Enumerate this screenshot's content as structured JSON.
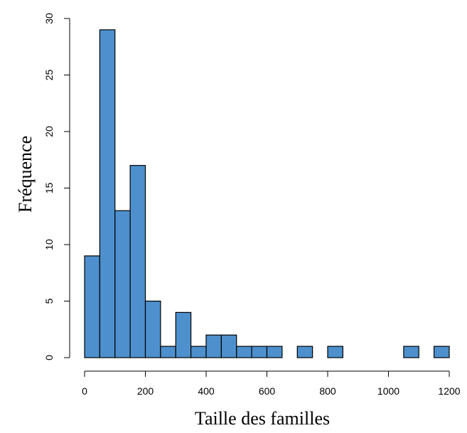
{
  "chart_data": {
    "type": "bar",
    "subtype": "histogram",
    "title": "",
    "xlabel": "Taille des familles",
    "ylabel": "Fréquence",
    "bin_width": 50,
    "bins": [
      {
        "from": 0,
        "to": 50,
        "count": 9
      },
      {
        "from": 50,
        "to": 100,
        "count": 29
      },
      {
        "from": 100,
        "to": 150,
        "count": 13
      },
      {
        "from": 150,
        "to": 200,
        "count": 17
      },
      {
        "from": 200,
        "to": 250,
        "count": 5
      },
      {
        "from": 250,
        "to": 300,
        "count": 1
      },
      {
        "from": 300,
        "to": 350,
        "count": 4
      },
      {
        "from": 350,
        "to": 400,
        "count": 1
      },
      {
        "from": 400,
        "to": 450,
        "count": 2
      },
      {
        "from": 450,
        "to": 500,
        "count": 2
      },
      {
        "from": 500,
        "to": 550,
        "count": 1
      },
      {
        "from": 550,
        "to": 600,
        "count": 1
      },
      {
        "from": 600,
        "to": 650,
        "count": 1
      },
      {
        "from": 650,
        "to": 700,
        "count": 0
      },
      {
        "from": 700,
        "to": 750,
        "count": 1
      },
      {
        "from": 750,
        "to": 800,
        "count": 0
      },
      {
        "from": 800,
        "to": 850,
        "count": 1
      },
      {
        "from": 850,
        "to": 900,
        "count": 0
      },
      {
        "from": 900,
        "to": 950,
        "count": 0
      },
      {
        "from": 950,
        "to": 1000,
        "count": 0
      },
      {
        "from": 1000,
        "to": 1050,
        "count": 0
      },
      {
        "from": 1050,
        "to": 1100,
        "count": 1
      },
      {
        "from": 1100,
        "to": 1150,
        "count": 0
      },
      {
        "from": 1150,
        "to": 1200,
        "count": 1
      }
    ],
    "xlim": [
      0,
      1200
    ],
    "ylim": [
      0,
      30
    ],
    "x_ticks": [
      0,
      200,
      400,
      600,
      800,
      1000,
      1200
    ],
    "y_ticks": [
      0,
      5,
      10,
      15,
      20,
      25,
      30
    ],
    "grid": false,
    "bar_color": "#4d90cd",
    "bar_edge_color": "#000000"
  }
}
